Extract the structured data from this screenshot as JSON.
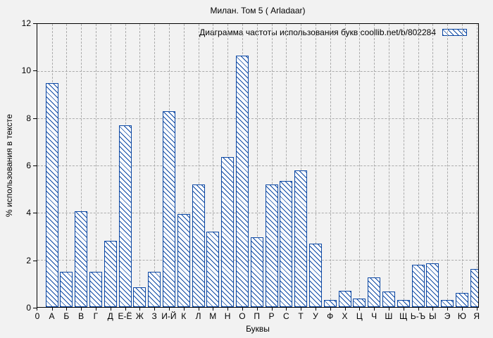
{
  "title": "Милан. Том 5 ( Arladaar)",
  "legend": {
    "label": "Диаграмма частоты использования букв coollib.net/b/802284"
  },
  "axes": {
    "y_label": "% использования в тексте",
    "x_label": "Буквы",
    "y_ticks": [
      0,
      2,
      4,
      6,
      8,
      10,
      12
    ],
    "origin_label": "0",
    "y_max": 12
  },
  "colors": {
    "bar_outline": "#0b47a3",
    "bar_fill": "#ffffff",
    "background": "#f2f2f2",
    "grid": "#ababab",
    "axis": "#000000",
    "text": "#000000"
  },
  "chart_data": {
    "type": "bar",
    "title": "Милан. Том 5 ( Arladaar)",
    "legend": "Диаграмма частоты использования букв coollib.net/b/802284",
    "xlabel": "Буквы",
    "ylabel": "% использования в тексте",
    "ylim": [
      0,
      12
    ],
    "grid": true,
    "legend_position": "top-right",
    "bar_style": "blue outline, white fill, diagonal hatch",
    "categories": [
      "А",
      "Б",
      "В",
      "Г",
      "Д",
      "Е-Ё",
      "Ж",
      "З",
      "И-Й",
      "К",
      "Л",
      "М",
      "Н",
      "О",
      "П",
      "Р",
      "С",
      "Т",
      "У",
      "Ф",
      "Х",
      "Ц",
      "Ч",
      "Ш",
      "Щ",
      "Ь-Ъ",
      "Ы",
      "Э",
      "Ю",
      "Я"
    ],
    "values": [
      9.5,
      1.5,
      4.05,
      1.5,
      2.8,
      7.7,
      0.85,
      1.5,
      8.3,
      3.95,
      5.2,
      3.2,
      6.35,
      10.65,
      2.95,
      5.2,
      5.35,
      5.8,
      2.7,
      0.3,
      0.7,
      0.35,
      1.25,
      0.65,
      0.3,
      1.8,
      1.85,
      0.3,
      0.6,
      1.6
    ]
  }
}
